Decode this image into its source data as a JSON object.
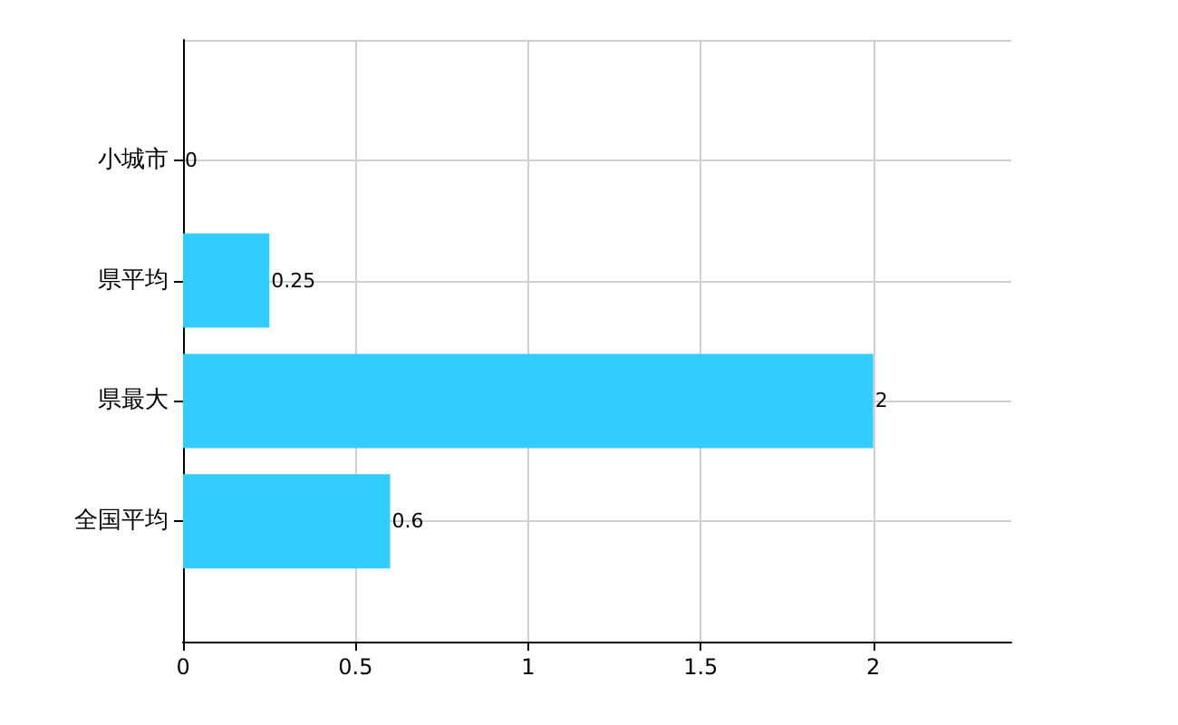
{
  "chart_data": {
    "type": "bar",
    "orientation": "horizontal",
    "categories": [
      "小城市",
      "県平均",
      "県最大",
      "全国平均"
    ],
    "values": [
      0,
      0.25,
      2,
      0.6
    ],
    "color": "#33ccff",
    "xlim": [
      0,
      2.4
    ],
    "xticks": [
      0,
      0.5,
      1,
      1.5,
      2
    ],
    "grid": true,
    "data_labels": true
  }
}
